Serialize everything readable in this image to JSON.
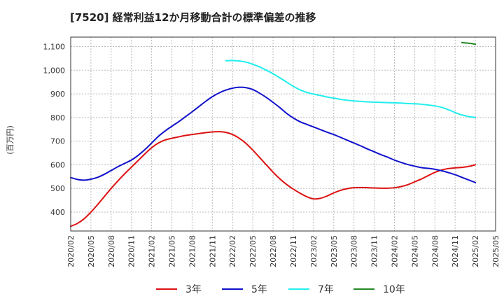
{
  "chart_data": {
    "type": "line",
    "title": "[7520]  経常利益12か月移動合計の標準偏差の推移",
    "ylabel": "(百万円)",
    "xlabel": "",
    "x_ticks": [
      "2020/02",
      "2020/05",
      "2020/08",
      "2020/11",
      "2021/02",
      "2021/05",
      "2021/08",
      "2021/11",
      "2022/02",
      "2022/05",
      "2022/08",
      "2022/11",
      "2023/02",
      "2023/05",
      "2023/08",
      "2023/11",
      "2024/02",
      "2024/05",
      "2024/08",
      "2024/11",
      "2025/02",
      "2025/05"
    ],
    "y_ticks": [
      400,
      500,
      600,
      700,
      800,
      900,
      1000,
      1100
    ],
    "y_tick_labels": [
      "400",
      "500",
      "600",
      "700",
      "800",
      "900",
      "1,000",
      "1,100"
    ],
    "ylim": [
      320,
      1140
    ],
    "grid": true,
    "legend_position": "bottom",
    "series": [
      {
        "name": "3年",
        "color": "#dd1111",
        "x": [
          "2020/02",
          "2020/03",
          "2020/04",
          "2020/05",
          "2020/06",
          "2020/07",
          "2020/08",
          "2020/09",
          "2020/10",
          "2020/11",
          "2020/12",
          "2021/01",
          "2021/02",
          "2021/03",
          "2021/04",
          "2021/05",
          "2021/06",
          "2021/07",
          "2021/08",
          "2021/09",
          "2021/10",
          "2021/11",
          "2021/12",
          "2022/01",
          "2022/02",
          "2022/03",
          "2022/04",
          "2022/05",
          "2022/06",
          "2022/07",
          "2022/08",
          "2022/09",
          "2022/10",
          "2022/11",
          "2022/12",
          "2023/01",
          "2023/02",
          "2023/03",
          "2023/04",
          "2023/05",
          "2023/06",
          "2023/07",
          "2023/08",
          "2023/09",
          "2023/10",
          "2023/11",
          "2023/12",
          "2024/01",
          "2024/02",
          "2024/03",
          "2024/04",
          "2024/05",
          "2024/06",
          "2024/07",
          "2024/08",
          "2024/09",
          "2024/10",
          "2024/11",
          "2024/12",
          "2025/01",
          "2025/02"
        ],
        "values": [
          340,
          352,
          372,
          400,
          432,
          466,
          500,
          532,
          562,
          590,
          618,
          646,
          672,
          692,
          705,
          712,
          718,
          724,
          728,
          732,
          736,
          739,
          740,
          737,
          728,
          712,
          690,
          662,
          631,
          600,
          569,
          541,
          517,
          497,
          480,
          465,
          456,
          458,
          468,
          481,
          492,
          499,
          503,
          504,
          503,
          502,
          501,
          501,
          503,
          508,
          516,
          528,
          540,
          554,
          568,
          578,
          584,
          587,
          589,
          593,
          600
        ]
      },
      {
        "name": "5年",
        "color": "#1111cc",
        "x": [
          "2020/02",
          "2020/03",
          "2020/04",
          "2020/05",
          "2020/06",
          "2020/07",
          "2020/08",
          "2020/09",
          "2020/10",
          "2020/11",
          "2020/12",
          "2021/01",
          "2021/02",
          "2021/03",
          "2021/04",
          "2021/05",
          "2021/06",
          "2021/07",
          "2021/08",
          "2021/09",
          "2021/10",
          "2021/11",
          "2021/12",
          "2022/01",
          "2022/02",
          "2022/03",
          "2022/04",
          "2022/05",
          "2022/06",
          "2022/07",
          "2022/08",
          "2022/09",
          "2022/10",
          "2022/11",
          "2022/12",
          "2023/01",
          "2023/02",
          "2023/03",
          "2023/04",
          "2023/05",
          "2023/06",
          "2023/07",
          "2023/08",
          "2023/09",
          "2023/10",
          "2023/11",
          "2023/12",
          "2024/01",
          "2024/02",
          "2024/03",
          "2024/04",
          "2024/05",
          "2024/06",
          "2024/07",
          "2024/08",
          "2024/09",
          "2024/10",
          "2024/11",
          "2024/12",
          "2025/01",
          "2025/02"
        ],
        "values": [
          546,
          538,
          535,
          539,
          547,
          560,
          576,
          592,
          606,
          620,
          640,
          664,
          692,
          720,
          743,
          763,
          782,
          803,
          824,
          846,
          868,
          888,
          904,
          916,
          924,
          928,
          926,
          918,
          903,
          885,
          864,
          842,
          818,
          798,
          782,
          771,
          760,
          749,
          738,
          728,
          716,
          704,
          692,
          680,
          667,
          655,
          643,
          632,
          620,
          610,
          601,
          594,
          588,
          585,
          581,
          575,
          567,
          558,
          547,
          536,
          525
        ]
      },
      {
        "name": "7年",
        "color": "#22eeee",
        "x": [
          "2022/01",
          "2022/02",
          "2022/03",
          "2022/04",
          "2022/05",
          "2022/06",
          "2022/07",
          "2022/08",
          "2022/09",
          "2022/10",
          "2022/11",
          "2022/12",
          "2023/01",
          "2023/02",
          "2023/03",
          "2023/04",
          "2023/05",
          "2023/06",
          "2023/07",
          "2023/08",
          "2023/09",
          "2023/10",
          "2023/11",
          "2023/12",
          "2024/01",
          "2024/02",
          "2024/03",
          "2024/04",
          "2024/05",
          "2024/06",
          "2024/07",
          "2024/08",
          "2024/09",
          "2024/10",
          "2024/11",
          "2024/12",
          "2025/01",
          "2025/02"
        ],
        "values": [
          1040,
          1041,
          1039,
          1034,
          1025,
          1014,
          1000,
          985,
          968,
          950,
          932,
          917,
          906,
          899,
          893,
          887,
          882,
          877,
          873,
          870,
          868,
          866,
          865,
          864,
          863,
          862,
          861,
          859,
          858,
          856,
          853,
          849,
          843,
          833,
          821,
          811,
          804,
          800
        ]
      },
      {
        "name": "10年",
        "color": "#228822",
        "x": [
          "2024/12",
          "2025/01",
          "2025/02"
        ],
        "values": [
          1117,
          1114,
          1110
        ]
      }
    ]
  }
}
